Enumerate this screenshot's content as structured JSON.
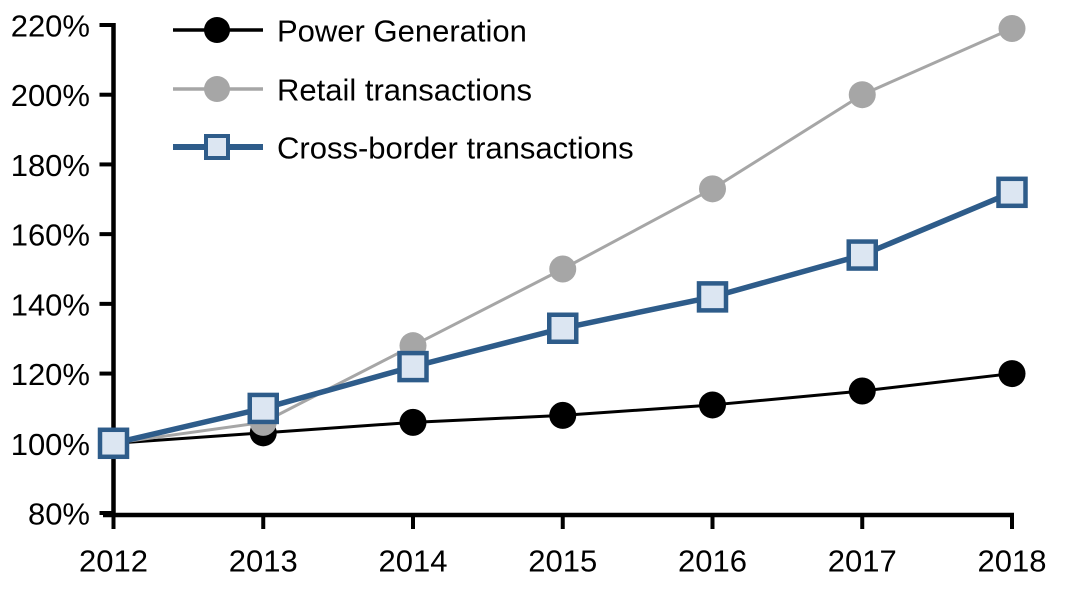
{
  "chart_data": {
    "type": "line",
    "title": "",
    "xlabel": "",
    "ylabel": "",
    "categories": [
      "2012",
      "2013",
      "2014",
      "2015",
      "2016",
      "2017",
      "2018"
    ],
    "y_axis": {
      "unit": "%",
      "min": 80,
      "max": 220,
      "step": 20,
      "ticks": [
        {
          "value": 220,
          "label": "220%"
        },
        {
          "value": 200,
          "label": "200%"
        },
        {
          "value": 180,
          "label": "180%"
        },
        {
          "value": 160,
          "label": "160%"
        },
        {
          "value": 140,
          "label": "140%"
        },
        {
          "value": 120,
          "label": "120%"
        },
        {
          "value": 100,
          "label": "100%"
        },
        {
          "value": 80,
          "label": "80%"
        }
      ]
    },
    "series": [
      {
        "name": "Power Generation",
        "color": "#000000",
        "marker": "circle",
        "marker_fill": "#000000",
        "line_width": 3,
        "values": [
          100,
          103,
          106,
          108,
          111,
          115,
          120
        ]
      },
      {
        "name": "Retail transactions",
        "color": "#A6A6A6",
        "marker": "circle",
        "marker_fill": "#A6A6A6",
        "line_width": 3,
        "values": [
          100,
          106,
          128,
          150,
          173,
          200,
          219
        ]
      },
      {
        "name": "Cross-border transactions",
        "color": "#2E5C8A",
        "marker": "square",
        "marker_fill": "#DCE6F2",
        "line_width": 5.5,
        "values": [
          100,
          110,
          122,
          133,
          142,
          154,
          172
        ]
      }
    ],
    "legend_position": "top-left",
    "grid": false
  },
  "colors": {
    "axis": "#000000",
    "background": "#FFFFFF",
    "text": "#000000"
  }
}
